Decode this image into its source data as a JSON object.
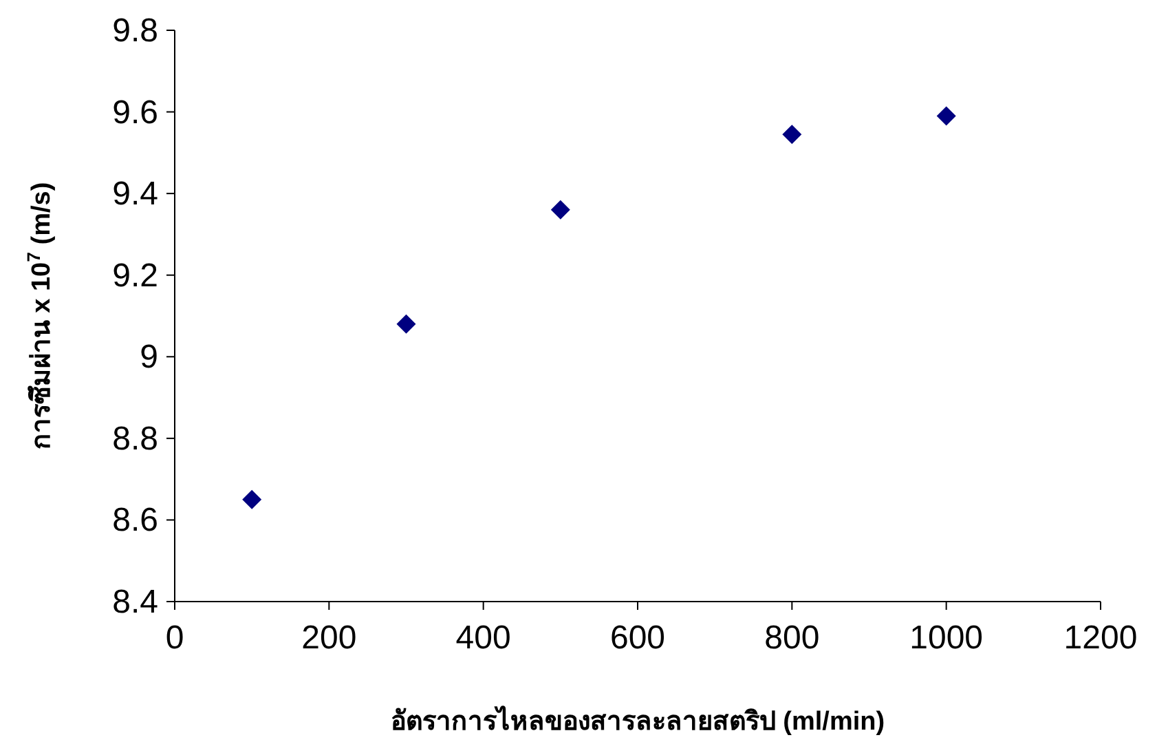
{
  "chart_data": {
    "type": "scatter",
    "xlabel": "อัตราการไหลของสารละลายสตริป (ml/min)",
    "ylabel": "การซึมผ่าน x 10$^{7}$ (m/s)",
    "x": [
      100,
      300,
      500,
      800,
      1000
    ],
    "series": [
      {
        "color": "#000080",
        "values": [
          8.65,
          9.08,
          9.36,
          9.545,
          9.59
        ]
      }
    ],
    "marker": "diamond",
    "xlim": [
      0,
      1200
    ],
    "xticks": [
      0,
      200,
      400,
      600,
      800,
      1000,
      1200
    ],
    "ylim": [
      8.4,
      9.8
    ],
    "yticks": [
      8.4,
      8.6,
      8.8,
      9,
      9.2,
      9.4,
      9.6,
      9.8
    ]
  }
}
